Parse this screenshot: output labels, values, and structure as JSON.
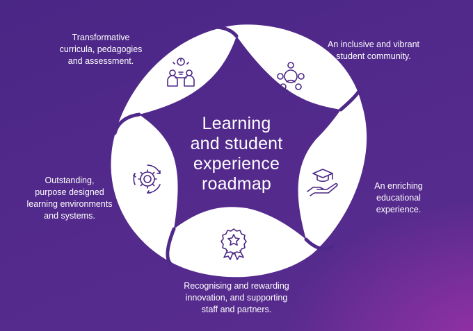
{
  "title": {
    "lines": [
      "Learning",
      "and student",
      "experience",
      "roadmap"
    ]
  },
  "segments": [
    {
      "id": "curricula",
      "lines": [
        "Transformative",
        "curricula, pedagogies",
        "and assessment."
      ],
      "icon": "people-lightbulb-icon"
    },
    {
      "id": "community",
      "lines": [
        "An inclusive and vibrant",
        "student community."
      ],
      "icon": "community-circle-icon"
    },
    {
      "id": "experience",
      "lines": [
        "An enriching",
        "educational",
        "experience."
      ],
      "icon": "graduation-cap-hand-icon"
    },
    {
      "id": "rewarding",
      "lines": [
        "Recognising and rewarding",
        "innovation, and supporting",
        "staff and partners."
      ],
      "icon": "award-ribbon-icon"
    },
    {
      "id": "environments",
      "lines": [
        "Outstanding,",
        "purpose designed",
        "learning environments",
        "and systems."
      ],
      "icon": "gear-cycle-icon"
    }
  ],
  "colors": {
    "background": "#4f2989",
    "shape": "#ffffff",
    "icon_stroke": "#4a2685"
  }
}
